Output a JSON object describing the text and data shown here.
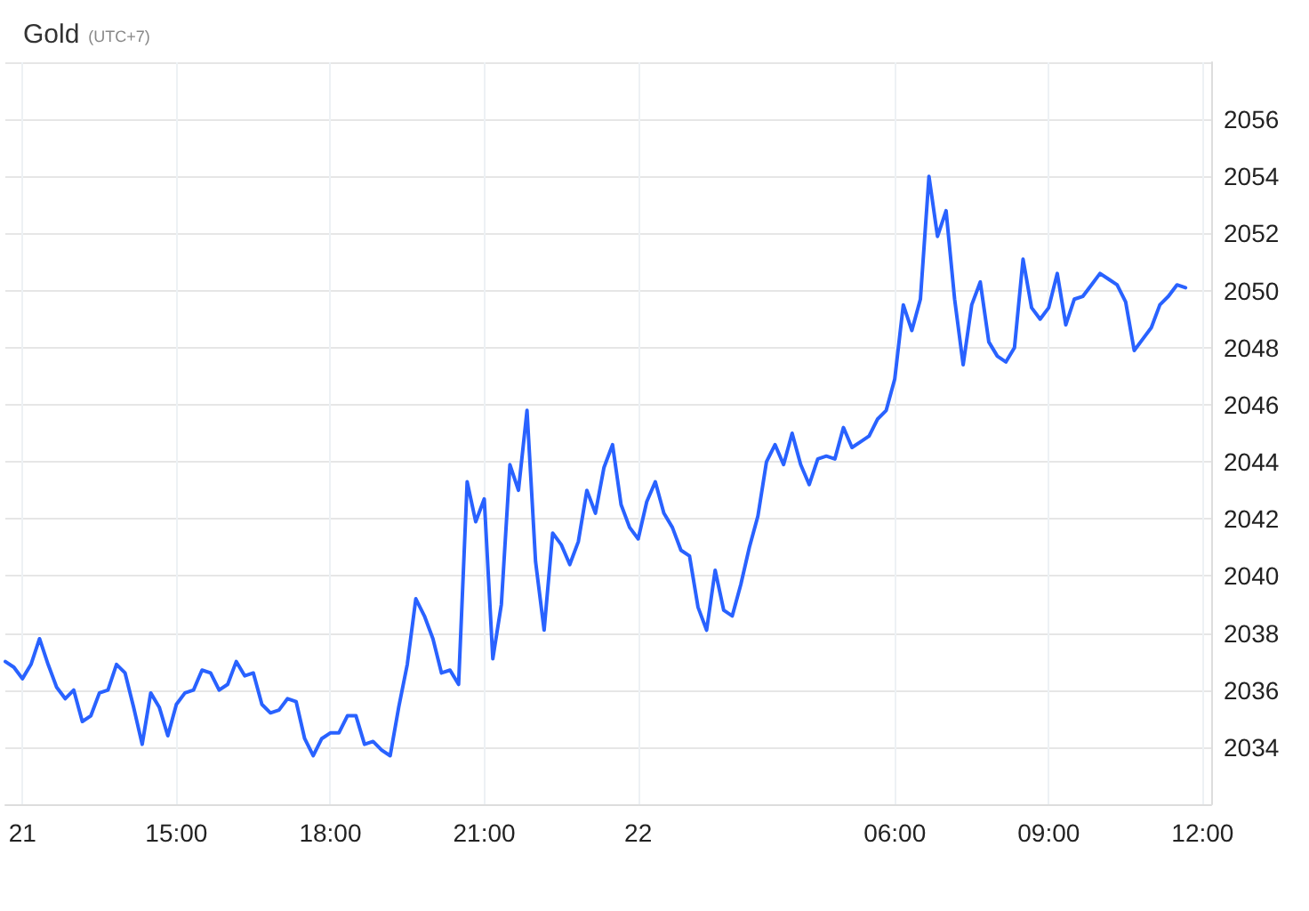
{
  "chart_data": {
    "type": "line",
    "title": "Gold",
    "subtitle": "(UTC+7)",
    "categories": [
      null,
      null,
      "21",
      null,
      null,
      null,
      null,
      null,
      null,
      null,
      null,
      null,
      null,
      null,
      null,
      null,
      null,
      null,
      null,
      null,
      "15:00",
      null,
      null,
      null,
      null,
      null,
      null,
      null,
      null,
      null,
      null,
      null,
      null,
      null,
      null,
      null,
      null,
      null,
      "18:00",
      null,
      null,
      null,
      null,
      null,
      null,
      null,
      null,
      null,
      null,
      null,
      null,
      null,
      null,
      null,
      null,
      null,
      "21:00",
      null,
      null,
      null,
      null,
      null,
      null,
      null,
      null,
      null,
      null,
      null,
      null,
      null,
      null,
      null,
      null,
      null,
      "22",
      null,
      null,
      null,
      null,
      null,
      null,
      null,
      null,
      null,
      null,
      null,
      null,
      null,
      null,
      null,
      null,
      null,
      null,
      null,
      null,
      null,
      null,
      null,
      null,
      null,
      null,
      null,
      null,
      null,
      "06:00",
      null,
      null,
      null,
      null,
      null,
      null,
      null,
      null,
      null,
      null,
      null,
      null,
      null,
      null,
      null,
      null,
      null,
      "09:00",
      null,
      null,
      null,
      null,
      null,
      null,
      null,
      null,
      null,
      null,
      null,
      null,
      null,
      null,
      null,
      null,
      null,
      "12:00",
      null
    ],
    "values": [
      2037.0,
      2036.8,
      2036.4,
      2036.9,
      2037.8,
      2036.9,
      2036.1,
      2035.7,
      2036.0,
      2034.9,
      2035.1,
      2035.9,
      2036.0,
      2036.9,
      2036.6,
      2035.4,
      2034.1,
      2035.9,
      2035.4,
      2034.4,
      2035.5,
      2035.9,
      2036.0,
      2036.7,
      2036.6,
      2036.0,
      2036.2,
      2037.0,
      2036.5,
      2036.6,
      2035.5,
      2035.2,
      2035.3,
      2035.7,
      2035.6,
      2034.3,
      2033.7,
      2034.3,
      2034.5,
      2034.5,
      2035.1,
      2035.1,
      2034.1,
      2034.2,
      2033.9,
      2033.7,
      2035.4,
      2036.9,
      2039.2,
      2038.6,
      2037.8,
      2036.6,
      2036.7,
      2036.2,
      2043.3,
      2041.9,
      2042.7,
      2037.1,
      2039.0,
      2043.9,
      2043.0,
      2045.8,
      2040.5,
      2038.1,
      2041.5,
      2041.1,
      2040.4,
      2041.2,
      2043.0,
      2042.2,
      2043.8,
      2044.6,
      2042.5,
      2041.7,
      2041.3,
      2042.6,
      2043.3,
      2042.2,
      2041.7,
      2040.9,
      2040.7,
      2038.9,
      2038.1,
      2040.2,
      2038.8,
      2038.6,
      2039.7,
      2041.0,
      2042.1,
      2044.0,
      2044.6,
      2043.9,
      2045.0,
      2043.9,
      2043.2,
      2044.1,
      2044.2,
      2044.1,
      2045.2,
      2044.5,
      2044.7,
      2044.9,
      2045.5,
      2045.8,
      2046.9,
      2049.5,
      2048.6,
      2049.7,
      2054.0,
      2051.9,
      2052.8,
      2049.7,
      2047.4,
      2049.5,
      2050.3,
      2048.2,
      2047.7,
      2047.5,
      2048.0,
      2051.1,
      2049.4,
      2049.0,
      2049.4,
      2050.6,
      2048.8,
      2049.7,
      2049.8,
      2050.2,
      2050.6,
      2050.4,
      2050.2,
      2049.6,
      2047.9,
      2048.3,
      2048.7,
      2049.5,
      2049.8,
      2050.2,
      2050.1,
      null,
      null,
      null
    ],
    "color": "#2962ff",
    "ylim": [
      2032,
      2058
    ],
    "yticks": [
      2034,
      2036,
      2038,
      2040,
      2042,
      2044,
      2046,
      2048,
      2050,
      2052,
      2054,
      2056,
      {
        "value": 2058,
        "label": null
      }
    ],
    "grid": true,
    "marker": "none",
    "line_style": "solid"
  }
}
